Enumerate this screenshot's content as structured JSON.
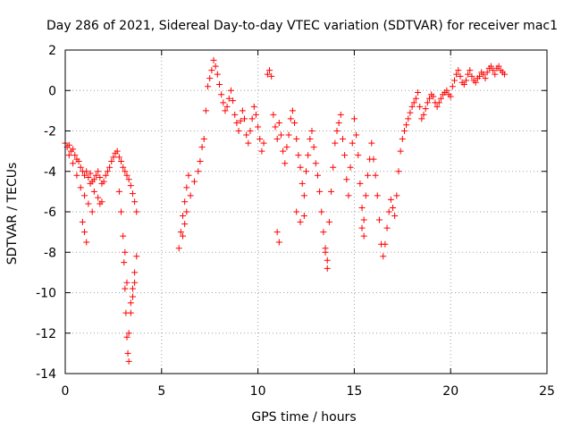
{
  "chart_data": {
    "type": "scatter",
    "title": "Day 286 of 2021, Sidereal Day-to-day VTEC variation (SDTVAR) for receiver mac1",
    "xlabel": "GPS time / hours",
    "ylabel": "SDTVAR / TECUs",
    "xlim": [
      0,
      25
    ],
    "ylim": [
      -14,
      2
    ],
    "xticks": [
      0,
      5,
      10,
      15,
      20,
      25
    ],
    "yticks": [
      2,
      0,
      -2,
      -4,
      -6,
      -8,
      -10,
      -12,
      -14
    ],
    "xtick_labels": [
      "0",
      "5",
      "10",
      "15",
      "20",
      "25"
    ],
    "ytick_labels": [
      "2",
      "0",
      "-2",
      "-4",
      "-6",
      "-8",
      "-10",
      "-12",
      "-14"
    ],
    "grid": true,
    "marker": "+",
    "color": "#ff0000",
    "series": [
      {
        "name": "SDTVAR",
        "x": [
          0.0,
          0.1,
          0.2,
          0.3,
          0.4,
          0.5,
          0.6,
          0.7,
          0.8,
          0.9,
          1.0,
          1.1,
          1.2,
          1.3,
          1.4,
          1.5,
          1.6,
          1.7,
          1.8,
          1.9,
          2.0,
          2.1,
          2.2,
          2.3,
          2.4,
          2.5,
          2.6,
          2.7,
          2.8,
          2.9,
          3.0,
          3.1,
          3.2,
          3.3,
          3.4,
          3.5,
          3.6,
          3.7,
          0.2,
          0.4,
          0.6,
          0.8,
          1.0,
          1.2,
          1.4,
          0.9,
          1.0,
          1.1,
          1.3,
          1.5,
          1.7,
          1.8,
          1.9,
          2.8,
          2.9,
          3.0,
          3.05,
          3.1,
          3.15,
          3.2,
          3.25,
          3.3,
          3.1,
          3.2,
          3.4,
          3.5,
          3.6,
          3.7,
          3.3,
          3.4,
          3.5,
          3.6,
          5.9,
          6.0,
          6.1,
          6.2,
          6.3,
          6.4,
          6.1,
          6.2,
          6.3,
          6.5,
          6.7,
          6.9,
          7.0,
          7.1,
          7.2,
          7.3,
          7.4,
          7.5,
          7.6,
          7.7,
          7.8,
          7.9,
          8.0,
          8.1,
          8.2,
          8.3,
          8.4,
          8.5,
          8.6,
          8.7,
          8.8,
          8.9,
          9.0,
          9.1,
          9.2,
          9.3,
          9.4,
          9.5,
          9.6,
          9.7,
          9.8,
          9.9,
          10.0,
          10.1,
          10.2,
          10.3,
          10.5,
          10.6,
          10.7,
          10.8,
          10.9,
          11.0,
          11.1,
          11.2,
          11.3,
          11.4,
          11.5,
          11.6,
          11.7,
          11.8,
          11.9,
          12.0,
          12.1,
          12.2,
          12.3,
          12.4,
          12.5,
          12.6,
          12.7,
          12.8,
          12.9,
          13.0,
          13.1,
          13.2,
          13.3,
          13.4,
          13.5,
          13.6,
          13.7,
          13.8,
          13.9,
          14.0,
          14.1,
          14.2,
          14.3,
          14.4,
          14.5,
          14.6,
          14.7,
          14.8,
          14.9,
          15.0,
          15.1,
          15.2,
          15.3,
          15.4,
          15.5,
          15.6,
          15.7,
          15.8,
          15.9,
          11.0,
          11.1,
          12.0,
          12.2,
          12.4,
          13.5,
          13.6,
          15.4,
          15.5,
          16.0,
          16.1,
          16.2,
          16.3,
          16.4,
          16.5,
          16.6,
          16.7,
          16.8,
          16.9,
          17.0,
          17.1,
          17.2,
          17.3,
          17.4,
          17.5,
          17.6,
          17.7,
          17.8,
          17.9,
          18.0,
          18.1,
          18.2,
          18.3,
          18.4,
          18.5,
          18.6,
          18.7,
          18.8,
          18.9,
          19.0,
          19.1,
          19.2,
          19.3,
          19.4,
          19.5,
          19.6,
          19.7,
          19.8,
          19.9,
          20.0,
          20.1,
          20.2,
          20.3,
          20.4,
          20.5,
          20.6,
          20.7,
          20.8,
          20.9,
          21.0,
          21.1,
          21.2,
          21.3,
          21.4,
          21.5,
          21.6,
          21.7,
          21.8,
          21.9,
          22.0,
          22.1,
          22.2,
          22.3,
          22.4,
          22.5,
          22.6,
          22.7,
          22.8
        ],
        "y": [
          -2.6,
          -2.8,
          -2.7,
          -3.0,
          -2.9,
          -3.2,
          -3.4,
          -3.5,
          -3.8,
          -4.0,
          -4.2,
          -4.0,
          -4.3,
          -4.1,
          -4.5,
          -4.4,
          -4.2,
          -4.0,
          -4.3,
          -4.6,
          -4.5,
          -4.2,
          -4.0,
          -3.8,
          -3.5,
          -3.3,
          -3.1,
          -3.0,
          -3.3,
          -3.5,
          -3.8,
          -4.0,
          -4.2,
          -4.4,
          -4.7,
          -5.1,
          -5.5,
          -6.0,
          -3.2,
          -3.6,
          -4.2,
          -4.8,
          -5.2,
          -5.6,
          -6.0,
          -6.5,
          -7.0,
          -7.5,
          -4.6,
          -5.0,
          -5.3,
          -5.6,
          -5.5,
          -5.0,
          -6.0,
          -7.2,
          -8.5,
          -9.8,
          -11.0,
          -12.2,
          -13.0,
          -13.4,
          -8.0,
          -9.5,
          -10.5,
          -9.8,
          -9.0,
          -8.2,
          -12.0,
          -11.0,
          -10.2,
          -9.5,
          -7.8,
          -7.0,
          -6.2,
          -5.5,
          -4.8,
          -4.2,
          -7.2,
          -6.6,
          -6.0,
          -5.2,
          -4.5,
          -4.0,
          -3.5,
          -2.8,
          -2.4,
          -1.0,
          0.2,
          0.6,
          1.0,
          1.5,
          1.2,
          0.8,
          0.3,
          -0.2,
          -0.6,
          -1.0,
          -0.8,
          -0.4,
          0.0,
          -0.5,
          -1.2,
          -1.6,
          -2.0,
          -1.5,
          -1.0,
          -1.4,
          -2.2,
          -2.6,
          -2.0,
          -1.4,
          -0.8,
          -1.2,
          -1.8,
          -2.4,
          -3.0,
          -2.6,
          0.8,
          1.0,
          0.7,
          -1.2,
          -1.8,
          -2.4,
          -1.6,
          -2.2,
          -3.0,
          -3.6,
          -2.8,
          -2.2,
          -1.4,
          -1.0,
          -1.6,
          -2.4,
          -3.2,
          -3.8,
          -4.6,
          -5.2,
          -4.0,
          -3.2,
          -2.4,
          -2.0,
          -2.8,
          -3.6,
          -4.2,
          -5.0,
          -6.0,
          -7.0,
          -8.0,
          -8.8,
          -6.5,
          -5.0,
          -3.8,
          -2.6,
          -2.0,
          -1.6,
          -1.2,
          -2.4,
          -3.2,
          -4.4,
          -5.2,
          -3.8,
          -2.6,
          -1.4,
          -2.2,
          -3.2,
          -4.6,
          -5.8,
          -6.4,
          -5.2,
          -4.2,
          -3.4,
          -2.6,
          -7.0,
          -7.5,
          -6.0,
          -6.5,
          -6.2,
          -7.8,
          -8.4,
          -6.8,
          -7.2,
          -3.4,
          -4.2,
          -5.2,
          -6.4,
          -7.6,
          -8.2,
          -7.6,
          -6.8,
          -6.0,
          -5.4,
          -5.8,
          -6.2,
          -5.2,
          -4.0,
          -3.0,
          -2.4,
          -2.0,
          -1.7,
          -1.4,
          -1.1,
          -0.8,
          -0.6,
          -0.4,
          -0.1,
          -0.8,
          -1.4,
          -1.2,
          -0.9,
          -0.6,
          -0.4,
          -0.2,
          -0.3,
          -0.6,
          -0.8,
          -0.6,
          -0.4,
          -0.2,
          -0.1,
          0.0,
          -0.2,
          -0.3,
          0.2,
          0.5,
          0.8,
          1.0,
          0.7,
          0.4,
          0.3,
          0.5,
          0.8,
          1.0,
          0.7,
          0.5,
          0.4,
          0.6,
          0.7,
          0.9,
          0.8,
          0.6,
          0.9,
          1.1,
          1.2,
          1.0,
          0.8,
          1.1,
          1.2,
          1.0,
          0.9,
          0.8
        ]
      }
    ]
  }
}
